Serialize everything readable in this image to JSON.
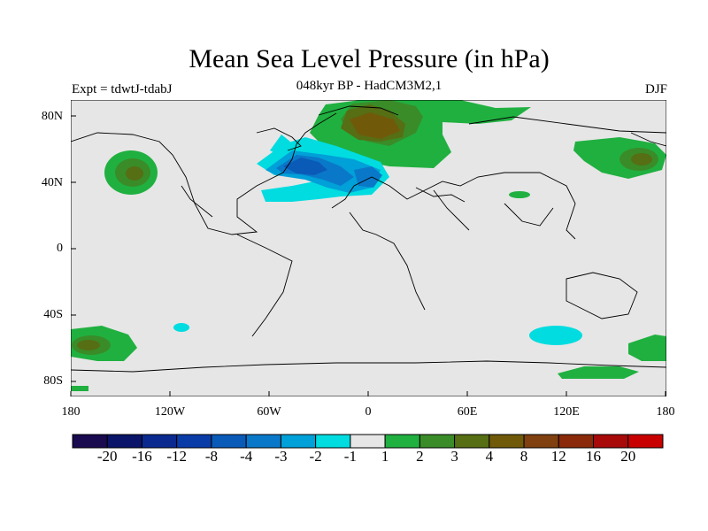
{
  "title": "Mean Sea Level Pressure (in hPa)",
  "subtitle": "048kyr BP - HadCM3M2,1",
  "experiment_label": "Expt = tdwtJ-tdabJ",
  "season_label": "DJF",
  "y_ticks": [
    "80N",
    "40N",
    "0",
    "40S",
    "80S"
  ],
  "x_ticks": [
    "180",
    "120W",
    "60W",
    "0",
    "60E",
    "120E",
    "180"
  ],
  "colorbar": {
    "colors": [
      "#1a0a50",
      "#0a1468",
      "#0a2a90",
      "#0a3ca8",
      "#0a5ab8",
      "#0a78c8",
      "#00a0d8",
      "#00dce0",
      "#e6e6e6",
      "#20b040",
      "#3a8c28",
      "#566e14",
      "#705a0a",
      "#804010",
      "#8a2a0a",
      "#a80a0a",
      "#c80000"
    ],
    "labels": [
      "-20",
      "-16",
      "-12",
      "-8",
      "-4",
      "-3",
      "-2",
      "-1",
      "1",
      "2",
      "3",
      "4",
      "8",
      "12",
      "16",
      "20"
    ]
  }
}
